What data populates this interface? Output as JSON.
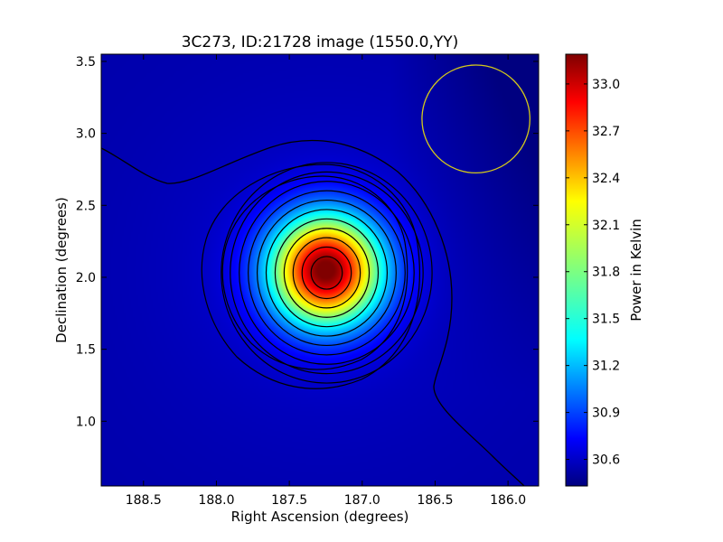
{
  "chart_data": {
    "type": "heatmap",
    "title": "3C273, ID:21728 image (1550.0,YY)",
    "xlabel": "Right Ascension (degrees)",
    "ylabel": "Declination (degrees)",
    "xlim": [
      188.79,
      185.79
    ],
    "ylim": [
      0.55,
      3.55
    ],
    "x_ticks": [
      188.5,
      188.0,
      187.5,
      187.0,
      186.5,
      186.0
    ],
    "x_tick_labels": [
      "188.5",
      "188.0",
      "187.5",
      "187.0",
      "186.5",
      "186.0"
    ],
    "y_ticks": [
      1.0,
      1.5,
      2.0,
      2.5,
      3.0,
      3.5
    ],
    "y_tick_labels": [
      "1.0",
      "1.5",
      "2.0",
      "2.5",
      "3.0",
      "3.5"
    ],
    "colorbar": {
      "label": "Power in Kelvin",
      "range": [
        30.43,
        33.19
      ],
      "ticks": [
        30.6,
        30.9,
        31.2,
        31.5,
        31.8,
        32.1,
        32.4,
        32.7,
        33.0
      ],
      "tick_labels": [
        "30.6",
        "30.9",
        "31.2",
        "31.5",
        "31.8",
        "32.1",
        "32.4",
        "32.7",
        "33.0"
      ],
      "colormap": "jet"
    },
    "source": {
      "ra": 187.25,
      "dec": 2.05,
      "peak": 33.15
    },
    "background_level": 30.55,
    "contour_count": 13,
    "beam_circle": {
      "ra": 186.22,
      "dec": 3.1,
      "radius_deg": 0.37,
      "color": "#d4c91a"
    },
    "grid": false,
    "contour_color": "#000000"
  }
}
